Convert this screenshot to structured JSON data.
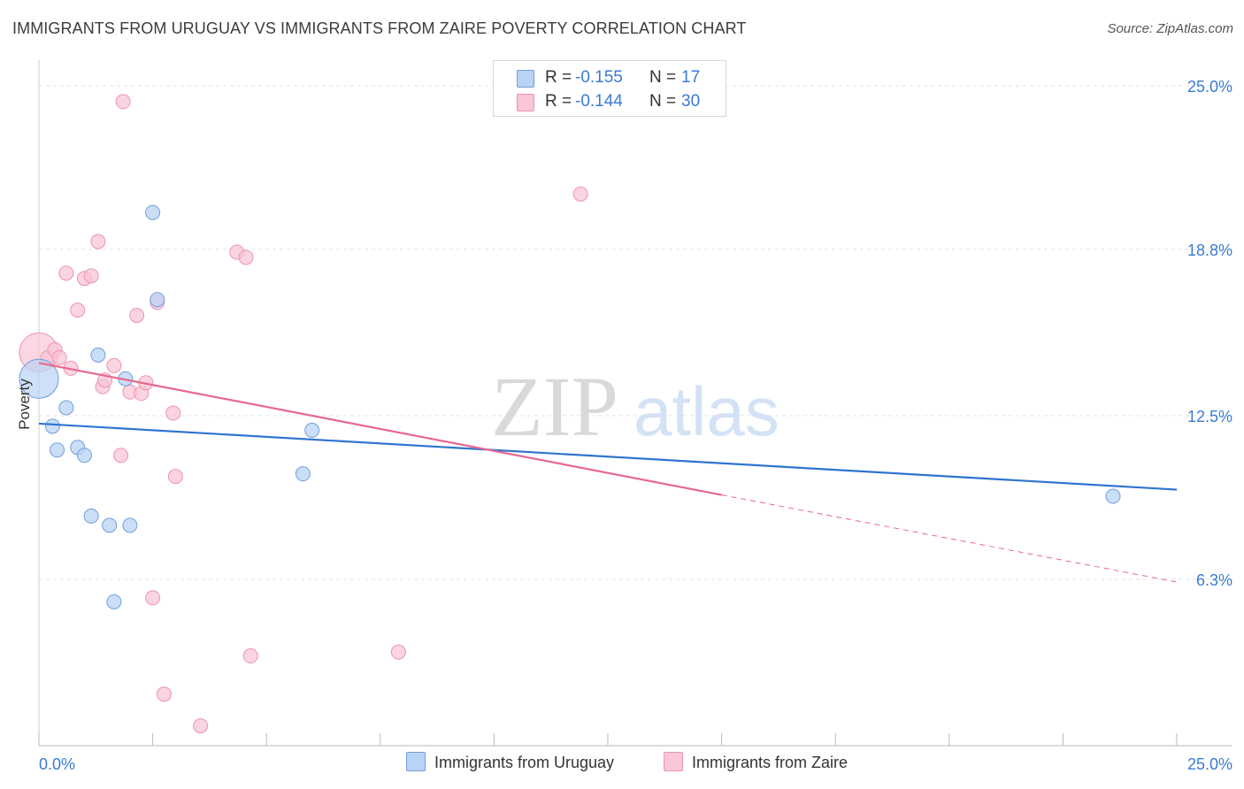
{
  "title": "IMMIGRANTS FROM URUGUAY VS IMMIGRANTS FROM ZAIRE POVERTY CORRELATION CHART",
  "source": "Source: ZipAtlas.com",
  "watermark": {
    "zip": "ZIP",
    "atlas": "atlas"
  },
  "legend": {
    "uruguay": {
      "r_label": "R =",
      "r_value": "-0.155",
      "n_label": "N =",
      "n_value": "17"
    },
    "zaire": {
      "r_label": "R =",
      "r_value": "-0.144",
      "n_label": "N =",
      "n_value": "30"
    }
  },
  "colors": {
    "uruguay_fill": "#b9d3f4",
    "uruguay_stroke": "#6f9fdc",
    "uruguay_line": "#2f74d0",
    "zaire_fill": "#f8c6d5",
    "zaire_stroke": "#eb94b0",
    "zaire_line": "#e8678f",
    "tick_label": "#3a7bd5",
    "grid": "#e2e2e2"
  },
  "chart_data": {
    "type": "scatter",
    "title": "IMMIGRANTS FROM URUGUAY VS IMMIGRANTS FROM ZAIRE POVERTY CORRELATION CHART",
    "xlabel": "",
    "ylabel": "Poverty",
    "xlim": [
      0,
      25
    ],
    "ylim": [
      0,
      26
    ],
    "x_tick_labels": [
      {
        "value": 0,
        "label": "0.0%"
      },
      {
        "value": 25,
        "label": "25.0%"
      }
    ],
    "y_tick_labels": [
      {
        "value": 6.3,
        "label": "6.3%"
      },
      {
        "value": 12.5,
        "label": "12.5%"
      },
      {
        "value": 18.8,
        "label": "18.8%"
      },
      {
        "value": 25.0,
        "label": "25.0%"
      }
    ],
    "series": [
      {
        "name": "Immigrants from Uruguay",
        "points": [
          {
            "x": 0.0,
            "y": 13.9,
            "big": true
          },
          {
            "x": 0.3,
            "y": 12.1
          },
          {
            "x": 0.4,
            "y": 11.2
          },
          {
            "x": 0.6,
            "y": 12.8
          },
          {
            "x": 0.85,
            "y": 11.3
          },
          {
            "x": 1.0,
            "y": 11.0
          },
          {
            "x": 1.15,
            "y": 8.7
          },
          {
            "x": 1.3,
            "y": 14.8
          },
          {
            "x": 1.55,
            "y": 8.35
          },
          {
            "x": 1.65,
            "y": 5.45
          },
          {
            "x": 1.9,
            "y": 13.9
          },
          {
            "x": 2.0,
            "y": 8.35
          },
          {
            "x": 2.5,
            "y": 20.2
          },
          {
            "x": 2.6,
            "y": 16.9
          },
          {
            "x": 5.8,
            "y": 10.3
          },
          {
            "x": 6.0,
            "y": 11.95
          },
          {
            "x": 23.6,
            "y": 9.45
          }
        ],
        "trend": {
          "x0": 0.0,
          "y0": 12.2,
          "x1": 25.0,
          "y1": 9.7
        }
      },
      {
        "name": "Immigrants from Zaire",
        "points": [
          {
            "x": 0.0,
            "y": 14.9,
            "big": true
          },
          {
            "x": 0.2,
            "y": 14.7
          },
          {
            "x": 0.35,
            "y": 15.0
          },
          {
            "x": 0.45,
            "y": 14.7
          },
          {
            "x": 0.6,
            "y": 17.9
          },
          {
            "x": 0.7,
            "y": 14.3
          },
          {
            "x": 0.85,
            "y": 16.5
          },
          {
            "x": 1.0,
            "y": 17.7
          },
          {
            "x": 1.15,
            "y": 17.8
          },
          {
            "x": 1.3,
            "y": 19.1
          },
          {
            "x": 1.4,
            "y": 13.6
          },
          {
            "x": 1.45,
            "y": 13.85
          },
          {
            "x": 1.65,
            "y": 14.4
          },
          {
            "x": 1.8,
            "y": 11.0
          },
          {
            "x": 1.85,
            "y": 24.4
          },
          {
            "x": 2.0,
            "y": 13.4
          },
          {
            "x": 2.15,
            "y": 16.3
          },
          {
            "x": 2.25,
            "y": 13.35
          },
          {
            "x": 2.35,
            "y": 13.75
          },
          {
            "x": 2.5,
            "y": 5.6
          },
          {
            "x": 2.6,
            "y": 16.8
          },
          {
            "x": 2.75,
            "y": 1.95
          },
          {
            "x": 2.95,
            "y": 12.6
          },
          {
            "x": 3.0,
            "y": 10.2
          },
          {
            "x": 3.55,
            "y": 0.75
          },
          {
            "x": 4.35,
            "y": 18.7
          },
          {
            "x": 4.55,
            "y": 18.5
          },
          {
            "x": 4.65,
            "y": 3.4
          },
          {
            "x": 7.9,
            "y": 3.55
          },
          {
            "x": 11.9,
            "y": 20.9
          }
        ],
        "trend": {
          "x0": 0.0,
          "y0": 14.5,
          "x1": 15.0,
          "y1": 9.5,
          "dash_x1": 25.0,
          "dash_y1": 6.2
        }
      }
    ]
  },
  "bottom_legend": {
    "uruguay": "Immigrants from Uruguay",
    "zaire": "Immigrants from Zaire"
  }
}
